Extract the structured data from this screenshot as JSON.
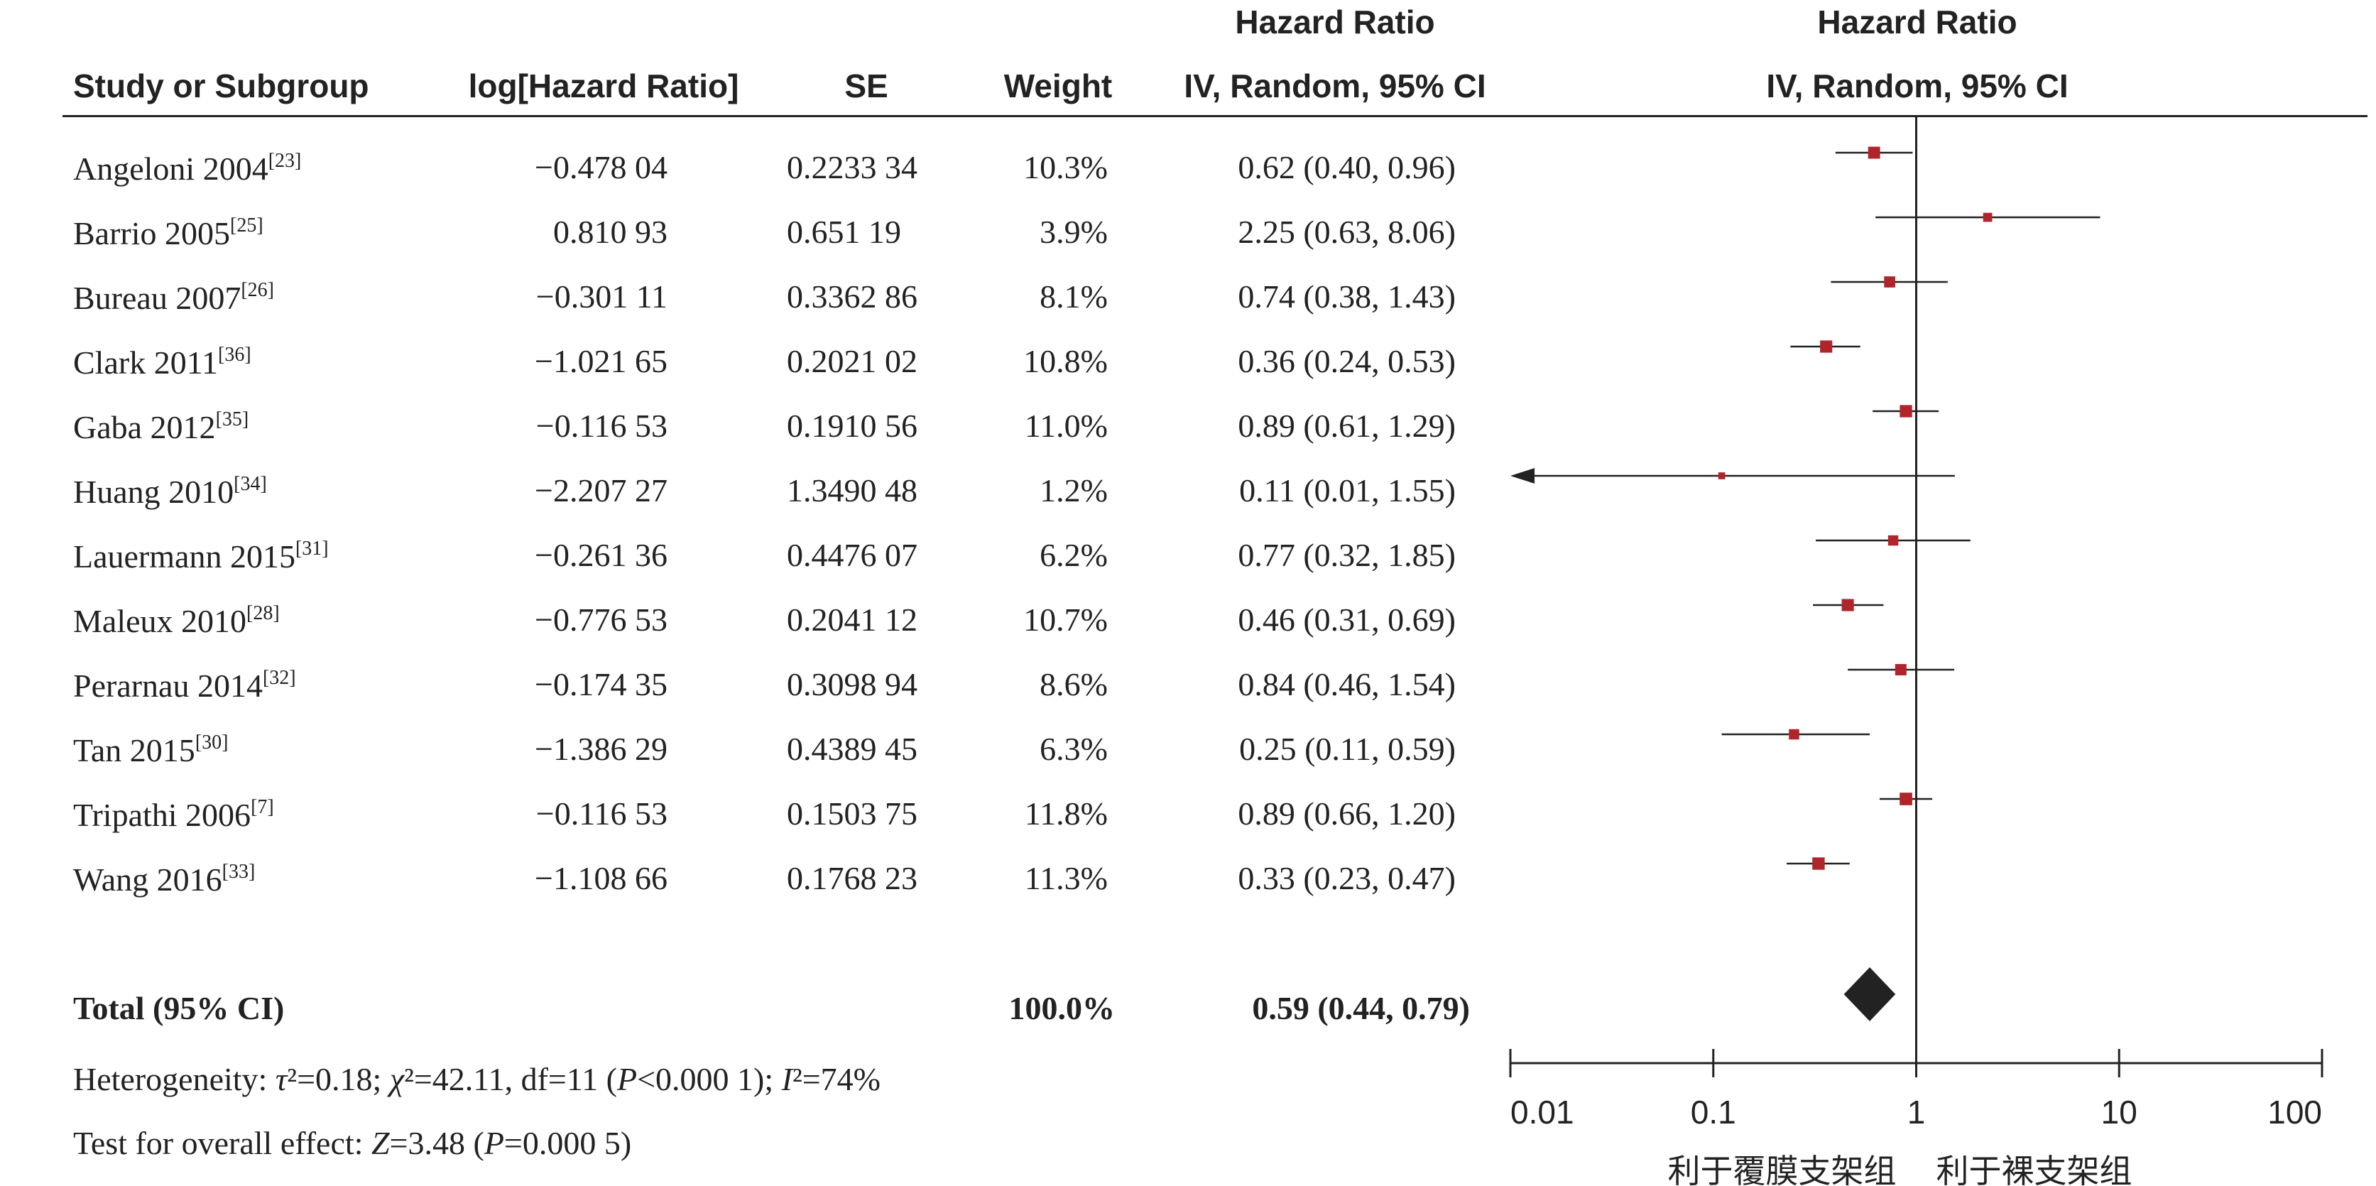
{
  "headers": {
    "study": "Study or Subgroup",
    "loghr": "log[Hazard Ratio]",
    "se": "SE",
    "weight": "Weight",
    "hr_title": "Hazard Ratio",
    "hr_method": "IV, Random, 95% CI",
    "plot_title": "Hazard Ratio",
    "plot_method": "IV, Random, 95% CI"
  },
  "studies": [
    {
      "name": "Angeloni 2004",
      "ref": "[23]",
      "loghr": "−0.478 04",
      "se": "0.2233 34",
      "weight": "10.3%",
      "ci": "0.62 (0.40, 0.96)"
    },
    {
      "name": "Barrio 2005",
      "ref": "[25]",
      "loghr": "0.810 93",
      "se": "0.651 19",
      "weight": "3.9%",
      "ci": "2.25 (0.63, 8.06)"
    },
    {
      "name": "Bureau 2007",
      "ref": "[26]",
      "loghr": "−0.301 11",
      "se": "0.3362 86",
      "weight": "8.1%",
      "ci": "0.74 (0.38, 1.43)"
    },
    {
      "name": "Clark 2011",
      "ref": "[36]",
      "loghr": "−1.021 65",
      "se": "0.2021 02",
      "weight": "10.8%",
      "ci": "0.36 (0.24, 0.53)"
    },
    {
      "name": "Gaba 2012",
      "ref": "[35]",
      "loghr": "−0.116 53",
      "se": "0.1910 56",
      "weight": "11.0%",
      "ci": "0.89 (0.61, 1.29)"
    },
    {
      "name": "Huang 2010",
      "ref": "[34]",
      "loghr": "−2.207 27",
      "se": "1.3490 48",
      "weight": "1.2%",
      "ci": "0.11 (0.01, 1.55)"
    },
    {
      "name": "Lauermann 2015",
      "ref": "[31]",
      "loghr": "−0.261 36",
      "se": "0.4476 07",
      "weight": "6.2%",
      "ci": "0.77 (0.32, 1.85)"
    },
    {
      "name": "Maleux 2010",
      "ref": "[28]",
      "loghr": "−0.776 53",
      "se": "0.2041 12",
      "weight": "10.7%",
      "ci": "0.46 (0.31, 0.69)"
    },
    {
      "name": "Perarnau 2014",
      "ref": "[32]",
      "loghr": "−0.174 35",
      "se": "0.3098 94",
      "weight": "8.6%",
      "ci": "0.84 (0.46, 1.54)"
    },
    {
      "name": "Tan 2015",
      "ref": "[30]",
      "loghr": "−1.386 29",
      "se": "0.4389 45",
      "weight": "6.3%",
      "ci": "0.25 (0.11, 0.59)"
    },
    {
      "name": "Tripathi 2006",
      "ref": "[7]",
      "loghr": "−0.116 53",
      "se": "0.1503 75",
      "weight": "11.8%",
      "ci": "0.89 (0.66, 1.20)"
    },
    {
      "name": "Wang 2016",
      "ref": "[33]",
      "loghr": "−1.108 66",
      "se": "0.1768 23",
      "weight": "11.3%",
      "ci": "0.33 (0.23, 0.47)"
    }
  ],
  "total": {
    "label": "Total (95% CI)",
    "weight": "100.0%",
    "ci": "0.59 (0.44, 0.79)"
  },
  "footnotes": {
    "het_a": "Heterogeneity: ",
    "het_tau": "τ",
    "het_b": "²=0.18; ",
    "het_chi": "χ",
    "het_c": "²=42.11, df=11 (",
    "het_p": "P",
    "het_d": "<0.000 1); ",
    "het_i": "I",
    "het_e": "²=74%",
    "test_a": "Test for overall effect: ",
    "test_z": "Z",
    "test_b": "=3.48 (",
    "test_p": "P",
    "test_c": "=0.000 5)"
  },
  "chart_data": {
    "type": "forest",
    "scale": "log",
    "xlim": [
      0.01,
      100
    ],
    "null_value": 1,
    "tick_labels": [
      "0.01",
      "0.1",
      "1",
      "10",
      "100"
    ],
    "tick_values": [
      0.01,
      0.1,
      1,
      10,
      100
    ],
    "favors_left": "利于覆膜支架组",
    "favors_right": "利于裸支架组",
    "points": [
      {
        "hr": 0.62,
        "lo": 0.4,
        "hi": 0.96,
        "weight": 10.3
      },
      {
        "hr": 2.25,
        "lo": 0.63,
        "hi": 8.06,
        "weight": 3.9
      },
      {
        "hr": 0.74,
        "lo": 0.38,
        "hi": 1.43,
        "weight": 8.1
      },
      {
        "hr": 0.36,
        "lo": 0.24,
        "hi": 0.53,
        "weight": 10.8
      },
      {
        "hr": 0.89,
        "lo": 0.61,
        "hi": 1.29,
        "weight": 11.0
      },
      {
        "hr": 0.11,
        "lo": 0.01,
        "hi": 1.55,
        "weight": 1.2
      },
      {
        "hr": 0.77,
        "lo": 0.32,
        "hi": 1.85,
        "weight": 6.2
      },
      {
        "hr": 0.46,
        "lo": 0.31,
        "hi": 0.69,
        "weight": 10.7
      },
      {
        "hr": 0.84,
        "lo": 0.46,
        "hi": 1.54,
        "weight": 8.6
      },
      {
        "hr": 0.25,
        "lo": 0.11,
        "hi": 0.59,
        "weight": 6.3
      },
      {
        "hr": 0.89,
        "lo": 0.66,
        "hi": 1.2,
        "weight": 11.8
      },
      {
        "hr": 0.33,
        "lo": 0.23,
        "hi": 0.47,
        "weight": 11.3
      }
    ],
    "pooled": {
      "hr": 0.59,
      "lo": 0.44,
      "hi": 0.79
    },
    "colors": {
      "marker": "#b0242b",
      "line": "#222222",
      "diamond": "#222222"
    }
  }
}
